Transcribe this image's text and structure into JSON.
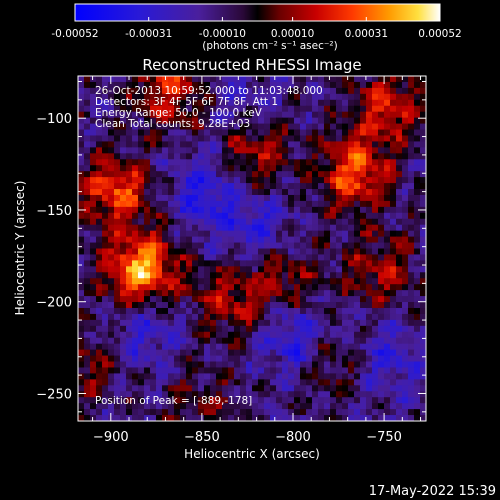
{
  "chart_data": {
    "type": "heatmap",
    "title": "Reconstructed RHESSI Image",
    "xlabel": "Heliocentric X (arcsec)",
    "ylabel": "Heliocentric Y (arcsec)",
    "xlim": [
      -918,
      -727
    ],
    "ylim": [
      -265,
      -77
    ],
    "xticks": [
      -900,
      -850,
      -800,
      -750
    ],
    "yticks": [
      -100,
      -150,
      -200,
      -250
    ],
    "colorbar": {
      "label": "(photons cm⁻² s⁻¹ asec⁻²)",
      "ticks": [
        "-0.00052",
        "-0.00031",
        "-0.00010",
        "0.00010",
        "0.00031",
        "0.00052"
      ],
      "range": [
        -0.00052,
        0.00052
      ]
    },
    "info_lines": [
      "26-Oct-2013 10:59:52.000 to 11:03:48.000",
      "Detectors: 3F 4F 5F 6F 7F 8F, Att 1",
      "Energy Range: 50.0 - 100.0 keV",
      "Clean     Total counts: 9.28E+03"
    ],
    "peak_text": "Position of Peak = [-889,-178]",
    "peak_position": [
      -889,
      -178
    ],
    "hotspots": [
      {
        "x": -883,
        "y": -183,
        "value": 0.00052
      },
      {
        "x": -897,
        "y": -140,
        "value": 0.00038
      },
      {
        "x": -766,
        "y": -130,
        "value": 0.0004
      },
      {
        "x": -748,
        "y": -93,
        "value": 0.0003
      },
      {
        "x": -868,
        "y": -85,
        "value": 0.0003
      },
      {
        "x": -822,
        "y": -118,
        "value": 0.00028
      },
      {
        "x": -835,
        "y": -200,
        "value": 0.00024
      },
      {
        "x": -805,
        "y": -188,
        "value": 0.00022
      },
      {
        "x": -752,
        "y": -183,
        "value": 0.00024
      },
      {
        "x": -778,
        "y": -233,
        "value": 0.00018
      },
      {
        "x": -915,
        "y": -235,
        "value": 0.0002
      },
      {
        "x": -850,
        "y": -255,
        "value": 0.00014
      },
      {
        "x": -848,
        "y": -140,
        "value": -0.00024
      },
      {
        "x": -820,
        "y": -160,
        "value": -0.00018
      },
      {
        "x": -880,
        "y": -215,
        "value": -0.0002
      },
      {
        "x": -798,
        "y": -220,
        "value": -0.00024
      },
      {
        "x": -748,
        "y": -230,
        "value": -0.00018
      },
      {
        "x": -828,
        "y": -95,
        "value": -0.00014
      }
    ]
  },
  "footer": {
    "timestamp": "17-May-2022 15:39"
  }
}
